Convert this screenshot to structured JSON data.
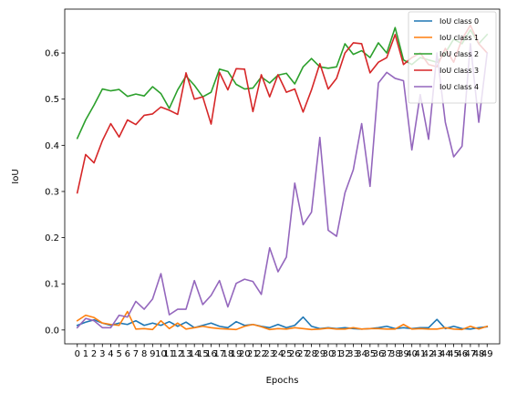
{
  "chart_data": {
    "type": "line",
    "xlabel": "Epochs",
    "ylabel": "IoU",
    "x": [
      0,
      1,
      2,
      3,
      4,
      5,
      6,
      7,
      8,
      9,
      10,
      11,
      12,
      13,
      14,
      15,
      16,
      17,
      18,
      19,
      20,
      21,
      22,
      23,
      24,
      25,
      26,
      27,
      28,
      29,
      30,
      31,
      32,
      33,
      34,
      35,
      36,
      37,
      38,
      39,
      40,
      41,
      42,
      43,
      44,
      45,
      46,
      47,
      48,
      49
    ],
    "x_tick_labels": [
      "0",
      "1",
      "2",
      "3",
      "4",
      "5",
      "6",
      "7",
      "8",
      "9",
      "10",
      "11",
      "12",
      "13",
      "14",
      "15",
      "16",
      "17",
      "18",
      "19",
      "20",
      "21",
      "22",
      "23",
      "24",
      "25",
      "26",
      "27",
      "28",
      "29",
      "30",
      "31",
      "32",
      "33",
      "34",
      "35",
      "36",
      "37",
      "38",
      "39",
      "40",
      "41",
      "42",
      "43",
      "44",
      "45",
      "46",
      "47",
      "48",
      "49"
    ],
    "yticks": [
      0.0,
      0.1,
      0.2,
      0.3,
      0.4,
      0.5,
      0.6
    ],
    "y_tick_labels": [
      "0.0",
      "0.1",
      "0.2",
      "0.3",
      "0.4",
      "0.5",
      "0.6"
    ],
    "ylim": [
      -0.03,
      0.695
    ],
    "xlim": [
      -1.5,
      50.5
    ],
    "grid": false,
    "legend_position": "top-right",
    "series": [
      {
        "name": "IoU class 0",
        "color": "#1f77b4",
        "values": [
          0.01,
          0.017,
          0.022,
          0.015,
          0.01,
          0.015,
          0.012,
          0.02,
          0.01,
          0.015,
          0.01,
          0.018,
          0.008,
          0.017,
          0.005,
          0.01,
          0.015,
          0.008,
          0.005,
          0.018,
          0.01,
          0.012,
          0.008,
          0.005,
          0.012,
          0.005,
          0.01,
          0.028,
          0.008,
          0.003,
          0.005,
          0.003,
          0.005,
          0.003,
          0.002,
          0.003,
          0.005,
          0.008,
          0.003,
          0.005,
          0.003,
          0.005,
          0.005,
          0.023,
          0.003,
          0.008,
          0.003,
          0.002,
          0.005,
          0.007
        ]
      },
      {
        "name": "IoU class 1",
        "color": "#ff7f0e",
        "values": [
          0.02,
          0.032,
          0.027,
          0.015,
          0.012,
          0.01,
          0.04,
          0.002,
          0.003,
          0.001,
          0.02,
          0.003,
          0.015,
          0.002,
          0.005,
          0.008,
          0.005,
          0.003,
          0.002,
          0.001,
          0.008,
          0.012,
          0.007,
          0.001,
          0.003,
          0.002,
          0.005,
          0.003,
          0.001,
          0.002,
          0.004,
          0.002,
          0.002,
          0.005,
          0.002,
          0.003,
          0.003,
          0.002,
          0.002,
          0.012,
          0.002,
          0.003,
          0.002,
          0.002,
          0.005,
          0.002,
          0.001,
          0.008,
          0.002,
          0.008
        ]
      },
      {
        "name": "IoU class 2",
        "color": "#2ca02c",
        "values": [
          0.415,
          0.455,
          0.487,
          0.522,
          0.518,
          0.521,
          0.506,
          0.511,
          0.507,
          0.527,
          0.512,
          0.48,
          0.52,
          0.55,
          0.53,
          0.505,
          0.515,
          0.565,
          0.56,
          0.532,
          0.522,
          0.524,
          0.548,
          0.535,
          0.552,
          0.556,
          0.533,
          0.57,
          0.588,
          0.57,
          0.567,
          0.57,
          0.62,
          0.597,
          0.605,
          0.59,
          0.622,
          0.6,
          0.655,
          0.585,
          0.575,
          0.59,
          0.585,
          0.58,
          0.6,
          0.63,
          0.62,
          0.65,
          0.62,
          0.64
        ]
      },
      {
        "name": "IoU class 3",
        "color": "#d62728",
        "values": [
          0.297,
          0.38,
          0.362,
          0.41,
          0.447,
          0.418,
          0.455,
          0.445,
          0.465,
          0.468,
          0.483,
          0.476,
          0.467,
          0.557,
          0.5,
          0.505,
          0.446,
          0.558,
          0.52,
          0.566,
          0.565,
          0.473,
          0.553,
          0.505,
          0.553,
          0.515,
          0.522,
          0.472,
          0.52,
          0.577,
          0.522,
          0.545,
          0.6,
          0.622,
          0.62,
          0.557,
          0.58,
          0.59,
          0.64,
          0.575,
          0.59,
          0.6,
          0.575,
          0.57,
          0.61,
          0.58,
          0.63,
          0.66,
          0.62,
          0.6
        ]
      },
      {
        "name": "IoU class 4",
        "color": "#9467bd",
        "values": [
          0.005,
          0.025,
          0.02,
          0.005,
          0.005,
          0.032,
          0.028,
          0.062,
          0.045,
          0.067,
          0.122,
          0.033,
          0.045,
          0.045,
          0.107,
          0.055,
          0.075,
          0.107,
          0.05,
          0.101,
          0.11,
          0.105,
          0.077,
          0.178,
          0.126,
          0.158,
          0.318,
          0.228,
          0.255,
          0.417,
          0.216,
          0.203,
          0.297,
          0.347,
          0.447,
          0.311,
          0.535,
          0.558,
          0.545,
          0.54,
          0.39,
          0.51,
          0.413,
          0.6,
          0.45,
          0.375,
          0.398,
          0.62,
          0.45,
          0.6
        ]
      }
    ]
  }
}
